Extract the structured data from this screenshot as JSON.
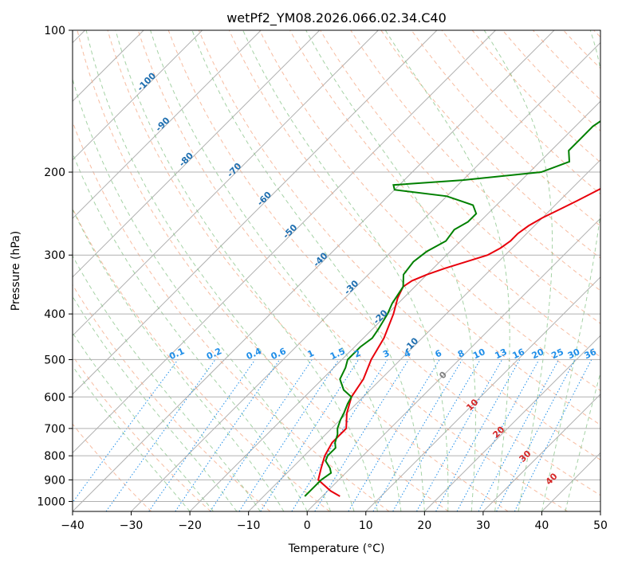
{
  "chart_data": {
    "type": "line",
    "title": "wetPf2_YM08.2026.066.02.34.C40",
    "xlabel": "Temperature (°C)",
    "ylabel": "Pressure (hPa)",
    "xlim": [
      -40,
      50
    ],
    "ylim": [
      1050,
      100
    ],
    "y_scale": "log",
    "grid": true,
    "x_ticks": [
      "−40",
      "−30",
      "−20",
      "−10",
      "0",
      "10",
      "20",
      "30",
      "40",
      "50"
    ],
    "y_ticks": [
      "100",
      "200",
      "300",
      "400",
      "500",
      "600",
      "700",
      "800",
      "900",
      "1000"
    ],
    "series": [
      {
        "color": "#e8000b",
        "pressure": [
          975,
          950,
          900,
          850,
          800,
          750,
          700,
          650,
          600,
          550,
          500,
          450,
          400,
          370,
          350,
          340,
          330,
          320,
          310,
          300,
          290,
          280,
          270,
          260,
          250,
          240,
          230,
          220,
          210,
          200,
          190,
          180,
          170,
          160,
          150,
          140,
          130,
          120,
          110,
          100
        ],
        "temperature": [
          3,
          0.5,
          -3.5,
          -5,
          -6.5,
          -7.5,
          -7.5,
          -10,
          -12,
          -13,
          -15,
          -16.5,
          -19,
          -21,
          -22,
          -21.5,
          -20,
          -18,
          -15.5,
          -13,
          -12,
          -11.5,
          -11.5,
          -11,
          -10,
          -8.5,
          -7,
          -5.5,
          -4,
          -3,
          -1.5,
          0,
          2,
          4,
          7,
          11,
          15,
          20,
          26,
          30
        ]
      },
      {
        "color": "#008000",
        "pressure": [
          975,
          950,
          900,
          870,
          850,
          820,
          800,
          770,
          750,
          720,
          700,
          670,
          650,
          620,
          600,
          580,
          550,
          520,
          500,
          470,
          450,
          430,
          400,
          380,
          350,
          330,
          310,
          295,
          280,
          265,
          255,
          245,
          235,
          225,
          218,
          213,
          208,
          200,
          190,
          180,
          170,
          160,
          150,
          140,
          130,
          120,
          110,
          100
        ],
        "temperature": [
          -3,
          -3,
          -3,
          -2.5,
          -3.5,
          -5.5,
          -6,
          -6,
          -7,
          -8,
          -9,
          -10,
          -10.5,
          -11.5,
          -12,
          -14.5,
          -17,
          -18,
          -19,
          -19,
          -18.5,
          -19,
          -20,
          -21,
          -22,
          -24,
          -24.5,
          -24,
          -22.5,
          -23,
          -22,
          -22,
          -24,
          -30,
          -40,
          -41,
          -30,
          -18,
          -15,
          -17,
          -17,
          -17,
          -16,
          -15.5,
          -14,
          -12,
          -10,
          -8
        ]
      }
    ],
    "dry_adiabats": [
      "-100",
      "-90",
      "-80",
      "-70",
      "-60",
      "-50",
      "-40",
      "-30",
      "-20",
      "-10"
    ],
    "mixing_ratio_lines": [
      "0.1",
      "0.2",
      "0.4",
      "0.6",
      "1",
      "1.5",
      "2",
      "3",
      "4",
      "6",
      "8",
      "10",
      "13",
      "16",
      "20",
      "25",
      "30",
      "36"
    ],
    "moist_adiabats": [
      "0",
      "10",
      "20",
      "30",
      "40"
    ]
  }
}
